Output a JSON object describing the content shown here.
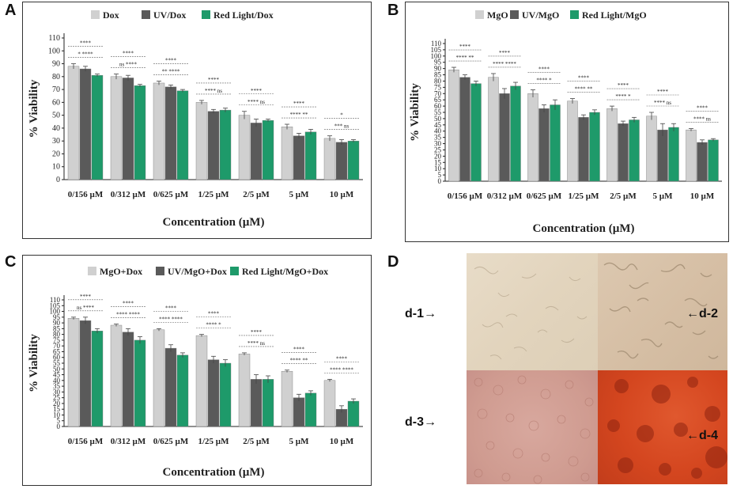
{
  "panels": {
    "a": {
      "letter": "A"
    },
    "b": {
      "letter": "B"
    },
    "c": {
      "letter": "C"
    },
    "d": {
      "letter": "D"
    }
  },
  "colors": {
    "light": "#d0d0d0",
    "dark": "#5a5a5a",
    "green": "#1e9a6a",
    "axis": "#222222"
  },
  "chart_data": [
    {
      "id": "A",
      "type": "bar",
      "ylabel": "% Viability",
      "xlabel": "Concentration (µM)",
      "ylim": [
        0,
        110
      ],
      "yticks": [
        0,
        10,
        20,
        30,
        40,
        50,
        60,
        70,
        80,
        90,
        100,
        110
      ],
      "categories": [
        "0/156 µM",
        "0/312 µM",
        "0/625 µM",
        "1/25 µM",
        "2/5 µM",
        "5 µM",
        "10 µM"
      ],
      "series": [
        {
          "name": "Dox",
          "values": [
            88,
            80,
            75,
            60,
            50,
            41,
            32
          ],
          "errors": [
            2,
            2,
            1.5,
            1.5,
            3,
            2,
            2
          ]
        },
        {
          "name": "UV/Dox",
          "values": [
            86,
            79,
            72,
            53,
            44,
            34,
            29
          ],
          "errors": [
            2,
            2,
            1.5,
            1.5,
            3,
            2,
            2
          ]
        },
        {
          "name": "Red Light/Dox",
          "values": [
            81,
            73,
            69,
            54,
            46,
            37,
            30
          ],
          "errors": [
            1,
            1,
            1,
            1.5,
            1,
            2,
            1
          ]
        }
      ],
      "sig": [
        {
          "top": "****",
          "mid": "* ****"
        },
        {
          "top": "****",
          "mid": "ns ****"
        },
        {
          "top": "****",
          "mid": "** ****"
        },
        {
          "top": "****",
          "mid": "**** ns"
        },
        {
          "top": "****",
          "mid": "**** ns"
        },
        {
          "top": "****",
          "mid": "**** **"
        },
        {
          "top": "*",
          "mid": "*** ns"
        }
      ]
    },
    {
      "id": "B",
      "type": "bar",
      "ylabel": "% Viability",
      "xlabel": "Concentration (µM)",
      "ylim": [
        0,
        110
      ],
      "yticks": [
        0,
        5,
        10,
        15,
        20,
        25,
        30,
        35,
        40,
        45,
        50,
        55,
        60,
        65,
        70,
        75,
        80,
        85,
        90,
        95,
        100,
        105,
        110
      ],
      "categories": [
        "0/156 µM",
        "0/312 µM",
        "0/625 µM",
        "1/25 µM",
        "2/5 µM",
        "5 µM",
        "10 µM"
      ],
      "series": [
        {
          "name": "MgO",
          "values": [
            89,
            83,
            70,
            64,
            58,
            52,
            41
          ],
          "errors": [
            2,
            3,
            3,
            2,
            2,
            3,
            1
          ]
        },
        {
          "name": "UV/MgO",
          "values": [
            83,
            70,
            58,
            51,
            46,
            41,
            31
          ],
          "errors": [
            2,
            4,
            3,
            2,
            2,
            5,
            2
          ]
        },
        {
          "name": "Red Light/MgO",
          "values": [
            78,
            76,
            61,
            55,
            49,
            43,
            33
          ],
          "errors": [
            2,
            3,
            4,
            2,
            2,
            3,
            1
          ]
        }
      ],
      "sig": [
        {
          "top": "****",
          "mid": "**** **"
        },
        {
          "top": "****",
          "mid": "**** ****"
        },
        {
          "top": "****",
          "mid": "**** *"
        },
        {
          "top": "****",
          "mid": "**** **"
        },
        {
          "top": "****",
          "mid": "**** *"
        },
        {
          "top": "****",
          "mid": "**** ns"
        },
        {
          "top": "****",
          "mid": "**** ns"
        }
      ]
    },
    {
      "id": "C",
      "type": "bar",
      "ylabel": "% Viability",
      "xlabel": "Concentration (µM)",
      "ylim": [
        0,
        110
      ],
      "yticks": [
        0,
        5,
        10,
        15,
        20,
        25,
        30,
        35,
        40,
        45,
        50,
        55,
        60,
        65,
        70,
        75,
        80,
        85,
        90,
        95,
        100,
        105,
        110
      ],
      "categories": [
        "0/156 µM",
        "0/312 µM",
        "0/625 µM",
        "1/25 µM",
        "2/5 µM",
        "5 µM",
        "10 µM"
      ],
      "series": [
        {
          "name": "MgO+Dox",
          "values": [
            94,
            88,
            84,
            79,
            63,
            48,
            40
          ],
          "errors": [
            1,
            1,
            1,
            1,
            1,
            1,
            1
          ]
        },
        {
          "name": "UV/MgO+Dox",
          "values": [
            92,
            82,
            68,
            58,
            41,
            25,
            15
          ],
          "errors": [
            3,
            3,
            3,
            3,
            4,
            3,
            3
          ]
        },
        {
          "name": "Red Light/MgO+Dox",
          "values": [
            83,
            75,
            62,
            55,
            41,
            29,
            22
          ],
          "errors": [
            2,
            3,
            2,
            3,
            3,
            2,
            2
          ]
        }
      ],
      "sig": [
        {
          "top": "****",
          "mid": "ns ****"
        },
        {
          "top": "****",
          "mid": "**** ****"
        },
        {
          "top": "****",
          "mid": "**** ****"
        },
        {
          "top": "****",
          "mid": "**** *"
        },
        {
          "top": "****",
          "mid": "**** ns"
        },
        {
          "top": "****",
          "mid": "**** **"
        },
        {
          "top": "****",
          "mid": "**** ****"
        }
      ]
    }
  ],
  "micrographs": {
    "labels": [
      "d-1",
      "d-2",
      "d-3",
      "d-4"
    ],
    "arrow_left": "→",
    "arrow_right": "←"
  }
}
